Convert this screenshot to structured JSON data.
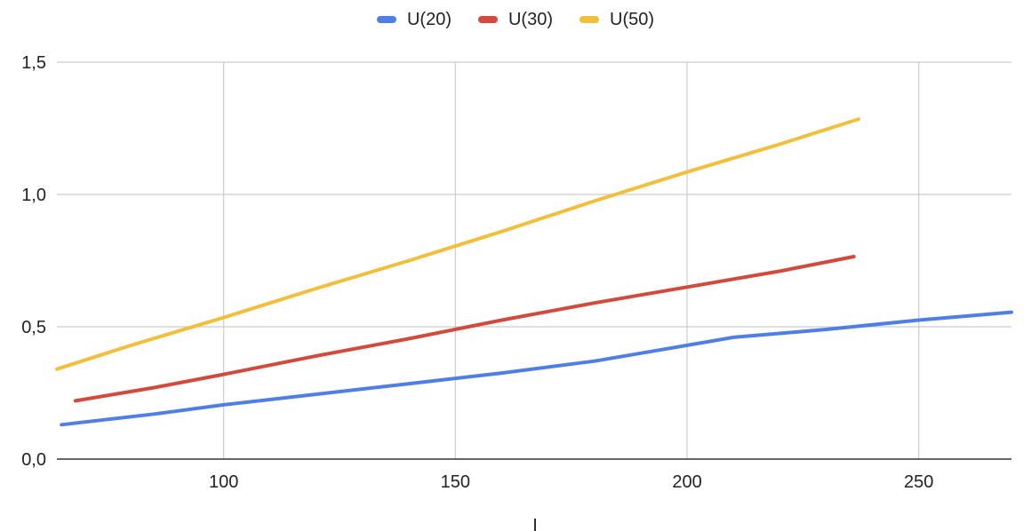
{
  "chart_data": {
    "type": "line",
    "title": "",
    "xlabel": "I",
    "ylabel": "",
    "xlim": [
      64,
      270
    ],
    "ylim": [
      0,
      1.5
    ],
    "x_ticks": [
      100,
      150,
      200,
      250
    ],
    "x_tick_labels": [
      "100",
      "150",
      "200",
      "250"
    ],
    "y_ticks": [
      0,
      0.5,
      1.0,
      1.5
    ],
    "y_tick_labels": [
      "0,0",
      "0,5",
      "1,0",
      "1,5"
    ],
    "grid": true,
    "legend_position": "top-center",
    "series": [
      {
        "name": "U(20)",
        "color": "#4f7fe4",
        "points": [
          [
            65,
            0.13
          ],
          [
            85,
            0.17
          ],
          [
            100,
            0.205
          ],
          [
            120,
            0.245
          ],
          [
            140,
            0.285
          ],
          [
            160,
            0.325
          ],
          [
            180,
            0.37
          ],
          [
            200,
            0.43
          ],
          [
            210,
            0.46
          ],
          [
            230,
            0.49
          ],
          [
            250,
            0.525
          ],
          [
            270,
            0.555
          ]
        ]
      },
      {
        "name": "U(30)",
        "color": "#d24a3b",
        "points": [
          [
            68,
            0.22
          ],
          [
            85,
            0.27
          ],
          [
            100,
            0.32
          ],
          [
            120,
            0.39
          ],
          [
            140,
            0.455
          ],
          [
            160,
            0.525
          ],
          [
            180,
            0.59
          ],
          [
            200,
            0.65
          ],
          [
            220,
            0.71
          ],
          [
            236,
            0.765
          ]
        ]
      },
      {
        "name": "U(50)",
        "color": "#f2bf3c",
        "points": [
          [
            64,
            0.34
          ],
          [
            80,
            0.43
          ],
          [
            100,
            0.535
          ],
          [
            120,
            0.645
          ],
          [
            140,
            0.75
          ],
          [
            160,
            0.86
          ],
          [
            180,
            0.975
          ],
          [
            200,
            1.085
          ],
          [
            220,
            1.19
          ],
          [
            237,
            1.285
          ]
        ]
      }
    ]
  }
}
